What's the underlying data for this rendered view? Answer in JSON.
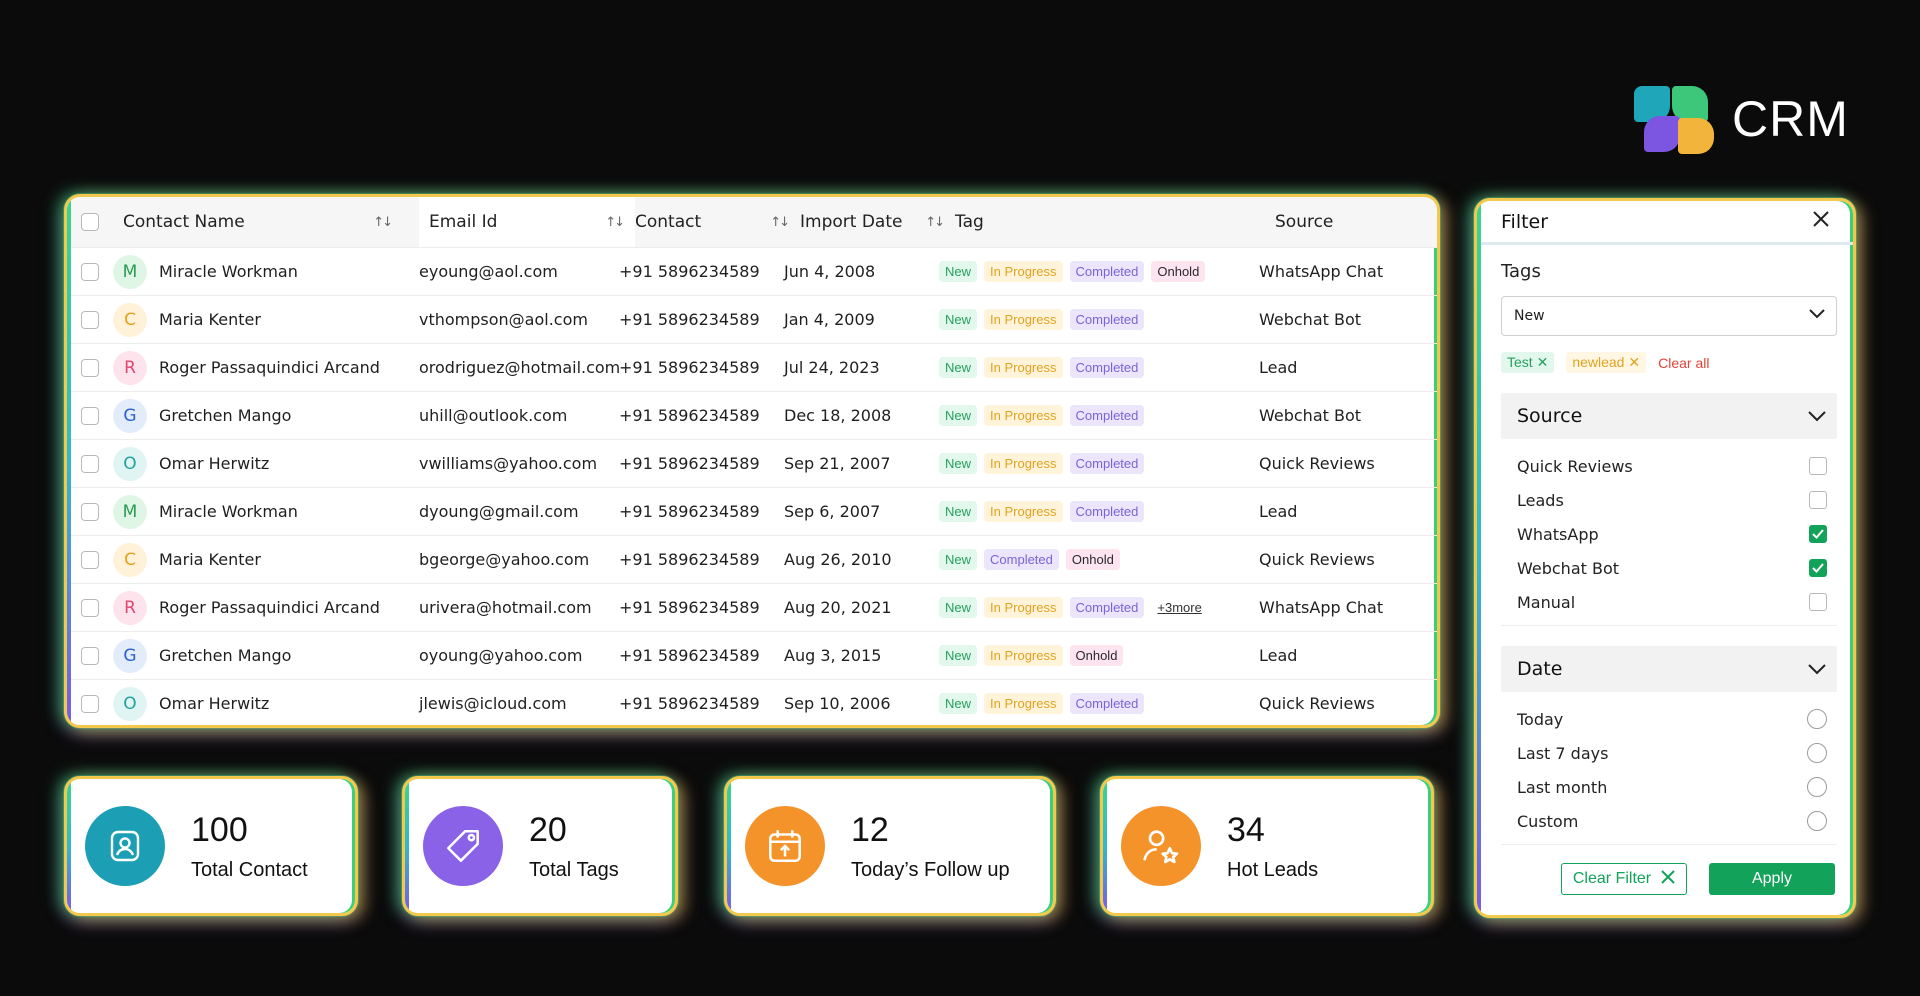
{
  "brand": {
    "name": "CRM"
  },
  "table": {
    "headers": {
      "name": "Contact Name",
      "email": "Email Id",
      "contact": "Contact",
      "date": "Import Date",
      "tag": "Tag",
      "source": "Source"
    },
    "rows": [
      {
        "initial": "M",
        "name": "Miracle Workman",
        "email": "eyoung@aol.com",
        "contact": "+91 5896234589",
        "date": "Jun 4, 2008",
        "tags": [
          "New",
          "In Progress",
          "Completed",
          "Onhold"
        ],
        "more": "",
        "source": "WhatsApp Chat"
      },
      {
        "initial": "C",
        "name": "Maria Kenter",
        "email": "vthompson@aol.com",
        "contact": "+91 5896234589",
        "date": "Jan 4, 2009",
        "tags": [
          "New",
          "In Progress",
          "Completed"
        ],
        "more": "",
        "source": "Webchat Bot"
      },
      {
        "initial": "R",
        "name": "Roger Passaquindici Arcand",
        "email": "orodriguez@hotmail.com",
        "contact": "+91 5896234589",
        "date": "Jul 24, 2023",
        "tags": [
          "New",
          "In Progress",
          "Completed"
        ],
        "more": "",
        "source": "Lead"
      },
      {
        "initial": "G",
        "name": "Gretchen Mango",
        "email": "uhill@outlook.com",
        "contact": "+91 5896234589",
        "date": "Dec 18, 2008",
        "tags": [
          "New",
          "In Progress",
          "Completed"
        ],
        "more": "",
        "source": "Webchat Bot"
      },
      {
        "initial": "O",
        "name": "Omar Herwitz",
        "email": "vwilliams@yahoo.com",
        "contact": "+91 5896234589",
        "date": "Sep 21, 2007",
        "tags": [
          "New",
          "In Progress",
          "Completed"
        ],
        "more": "",
        "source": "Quick Reviews"
      },
      {
        "initial": "M",
        "name": "Miracle Workman",
        "email": "dyoung@gmail.com",
        "contact": "+91 5896234589",
        "date": "Sep 6, 2007",
        "tags": [
          "New",
          "In Progress",
          "Completed"
        ],
        "more": "",
        "source": "Lead"
      },
      {
        "initial": "C",
        "name": "Maria Kenter",
        "email": "bgeorge@yahoo.com",
        "contact": "+91 5896234589",
        "date": "Aug 26, 2010",
        "tags": [
          "New",
          "Completed",
          "Onhold"
        ],
        "more": "",
        "source": "Quick Reviews"
      },
      {
        "initial": "R",
        "name": "Roger Passaquindici Arcand",
        "email": "urivera@hotmail.com",
        "contact": "+91 5896234589",
        "date": "Aug 20, 2021",
        "tags": [
          "New",
          "In Progress",
          "Completed"
        ],
        "more": "+3more",
        "source": "WhatsApp Chat"
      },
      {
        "initial": "G",
        "name": "Gretchen Mango",
        "email": "oyoung@yahoo.com",
        "contact": "+91 5896234589",
        "date": "Aug 3, 2015",
        "tags": [
          "New",
          "In Progress",
          "Onhold"
        ],
        "more": "",
        "source": "Lead"
      },
      {
        "initial": "O",
        "name": "Omar Herwitz",
        "email": "jlewis@icloud.com",
        "contact": "+91 5896234589",
        "date": "Sep 10, 2006",
        "tags": [
          "New",
          "In Progress",
          "Completed"
        ],
        "more": "",
        "source": "Quick Reviews"
      }
    ]
  },
  "avatar_colors": {
    "M": {
      "bg": "#dff6e6",
      "fg": "#2b9a57"
    },
    "C": {
      "bg": "#fff2d8",
      "fg": "#e3a21d"
    },
    "R": {
      "bg": "#fde4ec",
      "fg": "#e0466f"
    },
    "G": {
      "bg": "#e2ecfb",
      "fg": "#2d62c9"
    },
    "O": {
      "bg": "#dff4f3",
      "fg": "#22a39a"
    }
  },
  "stats": [
    {
      "value": "100",
      "label": "Total Contact",
      "icon": "contact-icon",
      "color": "#1c9fb4"
    },
    {
      "value": "20",
      "label": "Total Tags",
      "icon": "tag-icon",
      "color": "#8a62e8"
    },
    {
      "value": "12",
      "label": "Today’s Follow up",
      "icon": "calendar-icon",
      "color": "#f5932b"
    },
    {
      "value": "34",
      "label": "Hot Leads",
      "icon": "user-star-icon",
      "color": "#f5932b"
    }
  ],
  "filter": {
    "title": "Filter",
    "tags_label": "Tags",
    "tags_select": "New",
    "chips": [
      "Test",
      "newlead"
    ],
    "clear_all": "Clear all",
    "source": {
      "title": "Source",
      "options": [
        {
          "label": "Quick Reviews",
          "checked": false
        },
        {
          "label": "Leads",
          "checked": false
        },
        {
          "label": "WhatsApp",
          "checked": true
        },
        {
          "label": "Webchat Bot",
          "checked": true
        },
        {
          "label": "Manual",
          "checked": false
        }
      ]
    },
    "date": {
      "title": "Date",
      "options": [
        "Today",
        "Last 7 days",
        "Last month",
        "Custom"
      ]
    },
    "clear_filter": "Clear Filter",
    "apply": "Apply"
  }
}
